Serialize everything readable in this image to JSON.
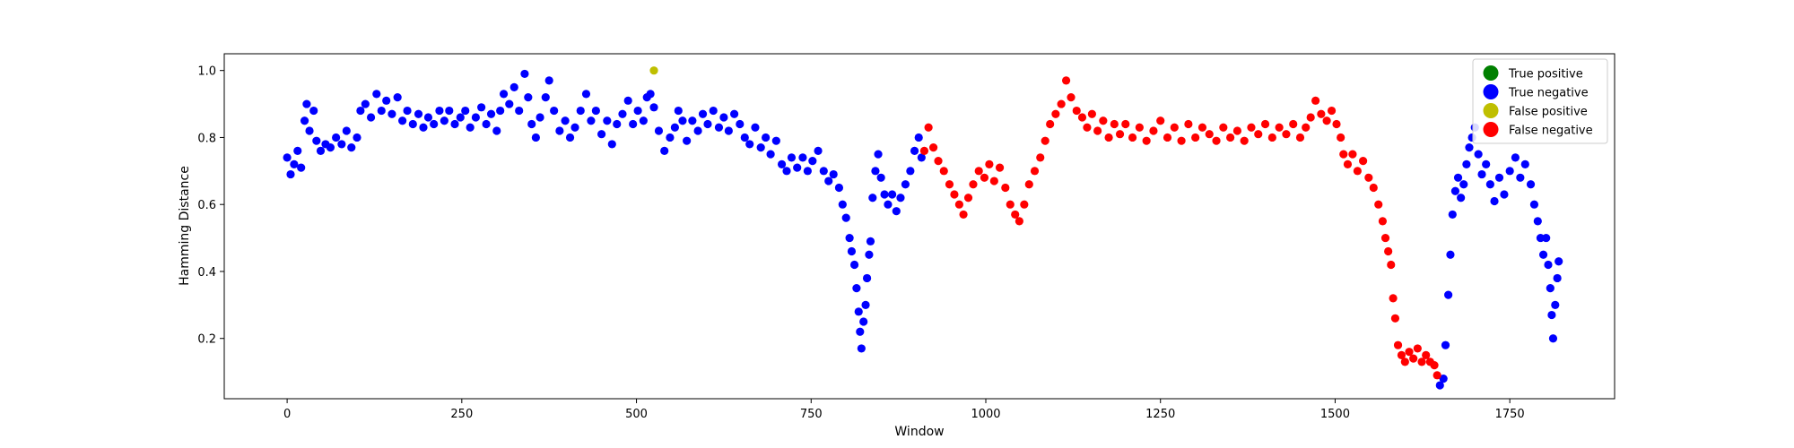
{
  "chart_data": {
    "type": "scatter",
    "title": "",
    "xlabel": "Window",
    "ylabel": "Hamming Distance",
    "xlim": [
      -90,
      1900
    ],
    "ylim": [
      0.02,
      1.05
    ],
    "xticks": [
      0,
      250,
      500,
      750,
      1000,
      1250,
      1500,
      1750
    ],
    "xtick_labels": [
      "0",
      "250",
      "500",
      "750",
      "1000",
      "1250",
      "1500",
      "1750"
    ],
    "yticks": [
      0.2,
      0.4,
      0.6,
      0.8,
      1.0
    ],
    "ytick_labels": [
      "0.2",
      "0.4",
      "0.6",
      "0.8",
      "1.0"
    ],
    "grid": false,
    "legend": {
      "placement": "top-right",
      "entries": [
        {
          "label": "True positive",
          "color": "#008000"
        },
        {
          "label": "True negative",
          "color": "#0000ff"
        },
        {
          "label": "False positive",
          "color": "#bfbf00"
        },
        {
          "label": "False negative",
          "color": "#ff0000"
        }
      ]
    },
    "series": [
      {
        "name": "True positive",
        "color": "#008000",
        "points": []
      },
      {
        "name": "True negative",
        "color": "#0000ff",
        "points": [
          [
            0,
            0.74
          ],
          [
            5,
            0.69
          ],
          [
            10,
            0.72
          ],
          [
            15,
            0.76
          ],
          [
            20,
            0.71
          ],
          [
            25,
            0.85
          ],
          [
            28,
            0.9
          ],
          [
            32,
            0.82
          ],
          [
            38,
            0.88
          ],
          [
            42,
            0.79
          ],
          [
            48,
            0.76
          ],
          [
            55,
            0.78
          ],
          [
            62,
            0.77
          ],
          [
            70,
            0.8
          ],
          [
            78,
            0.78
          ],
          [
            85,
            0.82
          ],
          [
            92,
            0.77
          ],
          [
            100,
            0.8
          ],
          [
            105,
            0.88
          ],
          [
            112,
            0.9
          ],
          [
            120,
            0.86
          ],
          [
            128,
            0.93
          ],
          [
            135,
            0.88
          ],
          [
            142,
            0.91
          ],
          [
            150,
            0.87
          ],
          [
            158,
            0.92
          ],
          [
            165,
            0.85
          ],
          [
            172,
            0.88
          ],
          [
            180,
            0.84
          ],
          [
            188,
            0.87
          ],
          [
            195,
            0.83
          ],
          [
            202,
            0.86
          ],
          [
            210,
            0.84
          ],
          [
            218,
            0.88
          ],
          [
            225,
            0.85
          ],
          [
            232,
            0.88
          ],
          [
            240,
            0.84
          ],
          [
            248,
            0.86
          ],
          [
            255,
            0.88
          ],
          [
            262,
            0.83
          ],
          [
            270,
            0.86
          ],
          [
            278,
            0.89
          ],
          [
            285,
            0.84
          ],
          [
            292,
            0.87
          ],
          [
            300,
            0.82
          ],
          [
            305,
            0.88
          ],
          [
            310,
            0.93
          ],
          [
            318,
            0.9
          ],
          [
            325,
            0.95
          ],
          [
            332,
            0.88
          ],
          [
            340,
            0.99
          ],
          [
            345,
            0.92
          ],
          [
            350,
            0.84
          ],
          [
            356,
            0.8
          ],
          [
            362,
            0.86
          ],
          [
            370,
            0.92
          ],
          [
            375,
            0.97
          ],
          [
            382,
            0.88
          ],
          [
            390,
            0.82
          ],
          [
            398,
            0.85
          ],
          [
            405,
            0.8
          ],
          [
            412,
            0.83
          ],
          [
            420,
            0.88
          ],
          [
            428,
            0.93
          ],
          [
            435,
            0.85
          ],
          [
            442,
            0.88
          ],
          [
            450,
            0.81
          ],
          [
            458,
            0.85
          ],
          [
            465,
            0.78
          ],
          [
            472,
            0.84
          ],
          [
            480,
            0.87
          ],
          [
            488,
            0.91
          ],
          [
            495,
            0.84
          ],
          [
            502,
            0.88
          ],
          [
            510,
            0.85
          ],
          [
            515,
            0.92
          ],
          [
            520,
            0.93
          ],
          [
            525,
            0.89
          ],
          [
            532,
            0.82
          ],
          [
            540,
            0.76
          ],
          [
            548,
            0.8
          ],
          [
            555,
            0.83
          ],
          [
            560,
            0.88
          ],
          [
            566,
            0.85
          ],
          [
            572,
            0.79
          ],
          [
            580,
            0.85
          ],
          [
            588,
            0.82
          ],
          [
            595,
            0.87
          ],
          [
            602,
            0.84
          ],
          [
            610,
            0.88
          ],
          [
            618,
            0.83
          ],
          [
            625,
            0.86
          ],
          [
            632,
            0.82
          ],
          [
            640,
            0.87
          ],
          [
            648,
            0.84
          ],
          [
            655,
            0.8
          ],
          [
            662,
            0.78
          ],
          [
            670,
            0.83
          ],
          [
            678,
            0.77
          ],
          [
            685,
            0.8
          ],
          [
            692,
            0.75
          ],
          [
            700,
            0.79
          ],
          [
            708,
            0.72
          ],
          [
            715,
            0.7
          ],
          [
            722,
            0.74
          ],
          [
            730,
            0.71
          ],
          [
            738,
            0.74
          ],
          [
            745,
            0.7
          ],
          [
            752,
            0.73
          ],
          [
            760,
            0.76
          ],
          [
            768,
            0.7
          ],
          [
            775,
            0.67
          ],
          [
            782,
            0.69
          ],
          [
            790,
            0.65
          ],
          [
            795,
            0.6
          ],
          [
            800,
            0.56
          ],
          [
            805,
            0.5
          ],
          [
            808,
            0.46
          ],
          [
            812,
            0.42
          ],
          [
            815,
            0.35
          ],
          [
            818,
            0.28
          ],
          [
            820,
            0.22
          ],
          [
            822,
            0.17
          ],
          [
            825,
            0.25
          ],
          [
            828,
            0.3
          ],
          [
            830,
            0.38
          ],
          [
            833,
            0.45
          ],
          [
            835,
            0.49
          ],
          [
            838,
            0.62
          ],
          [
            842,
            0.7
          ],
          [
            846,
            0.75
          ],
          [
            850,
            0.68
          ],
          [
            855,
            0.63
          ],
          [
            860,
            0.6
          ],
          [
            866,
            0.63
          ],
          [
            872,
            0.58
          ],
          [
            878,
            0.62
          ],
          [
            885,
            0.66
          ],
          [
            892,
            0.7
          ],
          [
            898,
            0.76
          ],
          [
            904,
            0.8
          ],
          [
            908,
            0.74
          ],
          [
            1650,
            0.06
          ],
          [
            1655,
            0.08
          ],
          [
            1658,
            0.18
          ],
          [
            1662,
            0.33
          ],
          [
            1665,
            0.45
          ],
          [
            1668,
            0.57
          ],
          [
            1672,
            0.64
          ],
          [
            1676,
            0.68
          ],
          [
            1680,
            0.62
          ],
          [
            1684,
            0.66
          ],
          [
            1688,
            0.72
          ],
          [
            1692,
            0.77
          ],
          [
            1696,
            0.8
          ],
          [
            1700,
            0.83
          ],
          [
            1705,
            0.75
          ],
          [
            1710,
            0.69
          ],
          [
            1716,
            0.72
          ],
          [
            1722,
            0.66
          ],
          [
            1728,
            0.61
          ],
          [
            1735,
            0.68
          ],
          [
            1742,
            0.63
          ],
          [
            1750,
            0.7
          ],
          [
            1758,
            0.74
          ],
          [
            1765,
            0.68
          ],
          [
            1772,
            0.72
          ],
          [
            1780,
            0.66
          ],
          [
            1785,
            0.6
          ],
          [
            1790,
            0.55
          ],
          [
            1794,
            0.5
          ],
          [
            1798,
            0.45
          ],
          [
            1802,
            0.5
          ],
          [
            1805,
            0.42
          ],
          [
            1808,
            0.35
          ],
          [
            1810,
            0.27
          ],
          [
            1812,
            0.2
          ],
          [
            1815,
            0.3
          ],
          [
            1818,
            0.38
          ],
          [
            1820,
            0.43
          ]
        ]
      },
      {
        "name": "False positive",
        "color": "#bfbf00",
        "points": [
          [
            525,
            1.0
          ]
        ]
      },
      {
        "name": "False negative",
        "color": "#ff0000",
        "points": [
          [
            912,
            0.76
          ],
          [
            918,
            0.83
          ],
          [
            925,
            0.77
          ],
          [
            932,
            0.73
          ],
          [
            940,
            0.7
          ],
          [
            948,
            0.66
          ],
          [
            955,
            0.63
          ],
          [
            962,
            0.6
          ],
          [
            968,
            0.57
          ],
          [
            975,
            0.62
          ],
          [
            982,
            0.66
          ],
          [
            990,
            0.7
          ],
          [
            998,
            0.68
          ],
          [
            1005,
            0.72
          ],
          [
            1012,
            0.67
          ],
          [
            1020,
            0.71
          ],
          [
            1028,
            0.65
          ],
          [
            1035,
            0.6
          ],
          [
            1042,
            0.57
          ],
          [
            1048,
            0.55
          ],
          [
            1055,
            0.6
          ],
          [
            1062,
            0.66
          ],
          [
            1070,
            0.7
          ],
          [
            1078,
            0.74
          ],
          [
            1085,
            0.79
          ],
          [
            1092,
            0.84
          ],
          [
            1100,
            0.87
          ],
          [
            1108,
            0.9
          ],
          [
            1115,
            0.97
          ],
          [
            1122,
            0.92
          ],
          [
            1130,
            0.88
          ],
          [
            1138,
            0.86
          ],
          [
            1145,
            0.83
          ],
          [
            1152,
            0.87
          ],
          [
            1160,
            0.82
          ],
          [
            1168,
            0.85
          ],
          [
            1176,
            0.8
          ],
          [
            1184,
            0.84
          ],
          [
            1192,
            0.81
          ],
          [
            1200,
            0.84
          ],
          [
            1210,
            0.8
          ],
          [
            1220,
            0.83
          ],
          [
            1230,
            0.79
          ],
          [
            1240,
            0.82
          ],
          [
            1250,
            0.85
          ],
          [
            1260,
            0.8
          ],
          [
            1270,
            0.83
          ],
          [
            1280,
            0.79
          ],
          [
            1290,
            0.84
          ],
          [
            1300,
            0.8
          ],
          [
            1310,
            0.83
          ],
          [
            1320,
            0.81
          ],
          [
            1330,
            0.79
          ],
          [
            1340,
            0.83
          ],
          [
            1350,
            0.8
          ],
          [
            1360,
            0.82
          ],
          [
            1370,
            0.79
          ],
          [
            1380,
            0.83
          ],
          [
            1390,
            0.81
          ],
          [
            1400,
            0.84
          ],
          [
            1410,
            0.8
          ],
          [
            1420,
            0.83
          ],
          [
            1430,
            0.81
          ],
          [
            1440,
            0.84
          ],
          [
            1450,
            0.8
          ],
          [
            1458,
            0.83
          ],
          [
            1465,
            0.86
          ],
          [
            1472,
            0.91
          ],
          [
            1480,
            0.87
          ],
          [
            1488,
            0.85
          ],
          [
            1495,
            0.88
          ],
          [
            1502,
            0.84
          ],
          [
            1508,
            0.8
          ],
          [
            1512,
            0.75
          ],
          [
            1518,
            0.72
          ],
          [
            1525,
            0.75
          ],
          [
            1532,
            0.7
          ],
          [
            1540,
            0.73
          ],
          [
            1548,
            0.68
          ],
          [
            1555,
            0.65
          ],
          [
            1562,
            0.6
          ],
          [
            1568,
            0.55
          ],
          [
            1572,
            0.5
          ],
          [
            1576,
            0.46
          ],
          [
            1580,
            0.42
          ],
          [
            1583,
            0.32
          ],
          [
            1586,
            0.26
          ],
          [
            1590,
            0.18
          ],
          [
            1595,
            0.15
          ],
          [
            1600,
            0.13
          ],
          [
            1606,
            0.16
          ],
          [
            1612,
            0.14
          ],
          [
            1618,
            0.17
          ],
          [
            1624,
            0.13
          ],
          [
            1630,
            0.15
          ],
          [
            1636,
            0.13
          ],
          [
            1642,
            0.12
          ],
          [
            1646,
            0.09
          ]
        ]
      }
    ]
  }
}
